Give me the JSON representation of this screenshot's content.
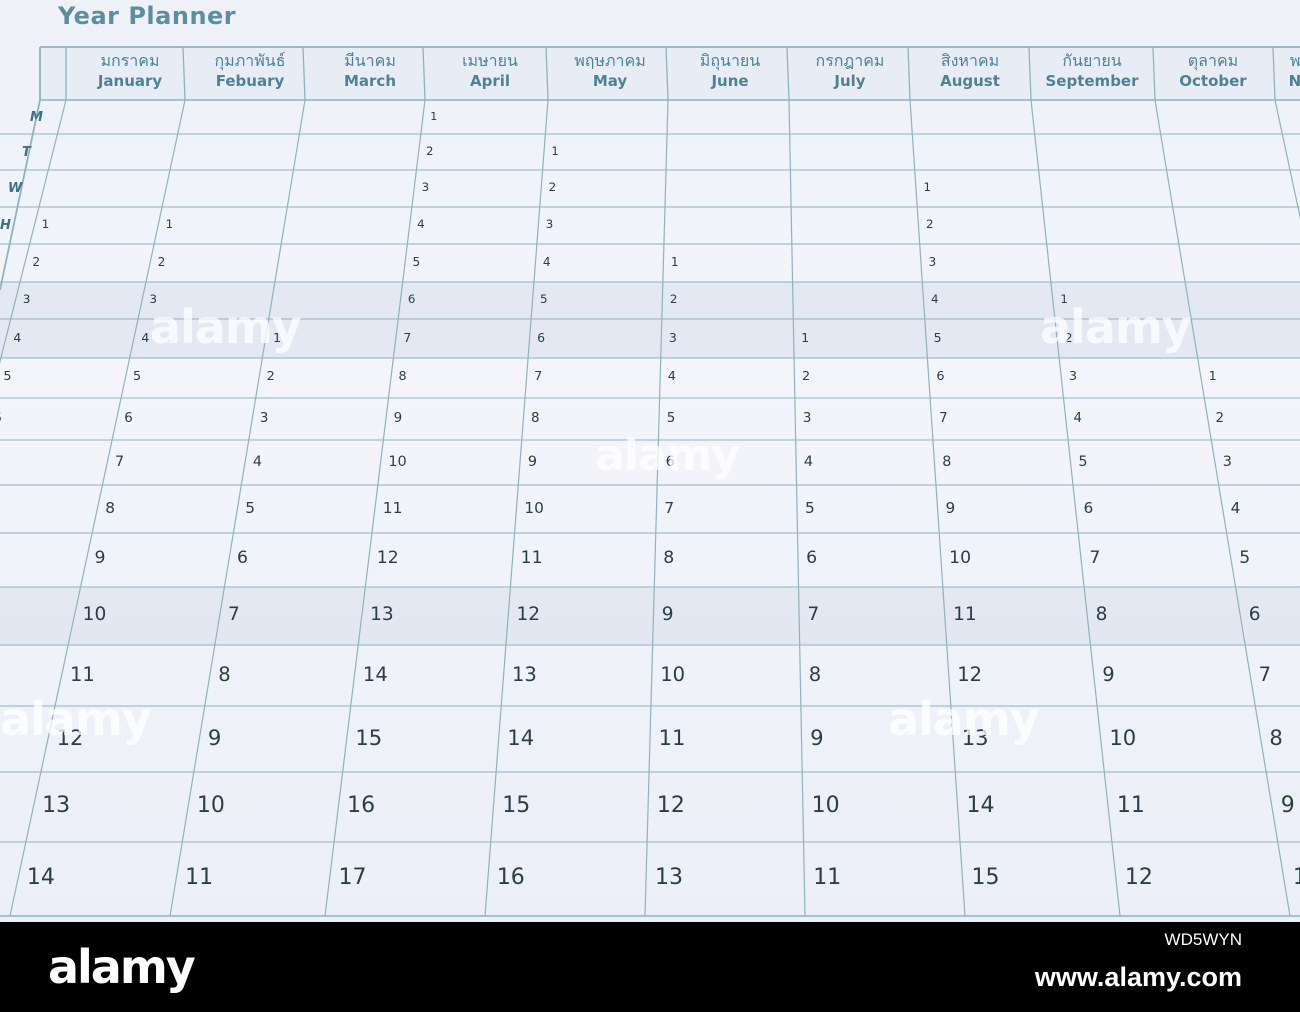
{
  "title": "Year Planner",
  "months": [
    {
      "th": "มกราคม",
      "en": "January"
    },
    {
      "th": "กุมภาพันธ์",
      "en": "Febuary"
    },
    {
      "th": "มีนาคม",
      "en": "March"
    },
    {
      "th": "เมษายน",
      "en": "April"
    },
    {
      "th": "พฤษภาคม",
      "en": "May"
    },
    {
      "th": "มิถุนายน",
      "en": "June"
    },
    {
      "th": "กรกฎาคม",
      "en": "July"
    },
    {
      "th": "สิงหาคม",
      "en": "August"
    },
    {
      "th": "กันยายน",
      "en": "September"
    },
    {
      "th": "ตุลาคม",
      "en": "October"
    },
    {
      "th": "พฤ",
      "en": "No"
    }
  ],
  "day_labels": [
    "M",
    "T",
    "W",
    "H"
  ],
  "month_first_row": [
    3,
    3,
    6,
    0,
    1,
    4,
    6,
    2,
    5,
    7
  ],
  "visible_rows": 17,
  "watermark_text": "alamy",
  "footer": {
    "logo": "alamy",
    "image_id": "WD5WYN",
    "site": "www.alamy.com"
  }
}
